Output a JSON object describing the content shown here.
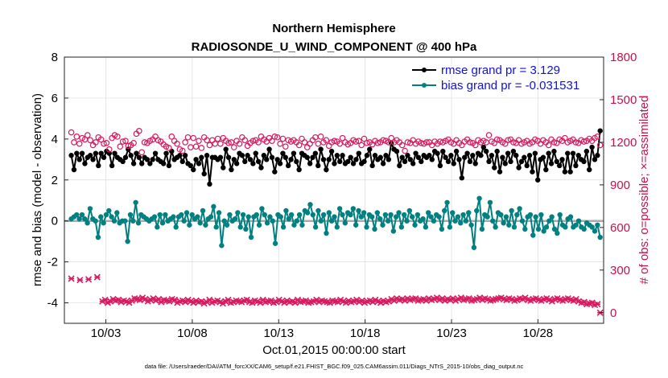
{
  "chart_data": {
    "type": "line",
    "title": "Northern Hemisphere",
    "subtitle": "RADIOSONDE_U_WIND_COMPONENT @ 400 hPa",
    "xlabel": "Oct.01,2015 00:00:00 start",
    "ylabel": "rmse and bias (model - observation)",
    "ylabel_right": "# of obs: o=possible; ×=assimilated",
    "footnote": "data file: /Users/raeder/DAI/ATM_forcXX/CAM6_setup/f.e21.FHIST_BGC.f09_025.CAM6assim.011/Diags_NTrS_2015-10/obs_diag_output.nc",
    "xlim": [
      0.6,
      31.8
    ],
    "ylim": [
      -5,
      8
    ],
    "ylim_right": [
      -75,
      1800
    ],
    "x_tick_values": [
      3,
      8,
      13,
      18,
      23,
      28
    ],
    "x_tick_labels": [
      "10/03",
      "10/08",
      "10/13",
      "10/18",
      "10/23",
      "10/28"
    ],
    "y_ticks": [
      -4,
      -2,
      0,
      2,
      4,
      6,
      8
    ],
    "y_ticks_right": [
      0,
      300,
      600,
      900,
      1200,
      1500,
      1800
    ],
    "legend": {
      "placement": "top-right",
      "rmse_label": "rmse grand pr = 3.129",
      "bias_label": "bias grand pr = -0.031531"
    },
    "colors": {
      "rmse": "#000000",
      "bias": "#008080",
      "obs": "#d81b60",
      "zero_line": "#aaaaaa",
      "grid": "#dcdcdc"
    },
    "series": [
      {
        "name": "rmse",
        "values": [
          3.2,
          2.5,
          3.3,
          3.0,
          3.3,
          2.8,
          3.1,
          3.2,
          3.0,
          3.3,
          2.7,
          3.3,
          3.1,
          3.4,
          3.3,
          2.7,
          3.3,
          3.1,
          3.0,
          2.9,
          3.1,
          3.5,
          3.2,
          2.8,
          3.3,
          3.1,
          2.8,
          3.1,
          3.0,
          2.8,
          3.0,
          3.3,
          3.0,
          2.9,
          2.8,
          3.3,
          2.7,
          3.4,
          3.0,
          3.1,
          3.2,
          2.9,
          3.2,
          2.8,
          2.7,
          2.5,
          3.0,
          2.8,
          3.1,
          2.3,
          3.2,
          1.8,
          3.1,
          3.1,
          3.0,
          3.1,
          2.6,
          3.5,
          3.1,
          2.5,
          3.0,
          2.8,
          3.3,
          3.2,
          2.9,
          3.2,
          3.0,
          2.8,
          3.3,
          2.9,
          2.6,
          3.2,
          3.0,
          3.5,
          3.1,
          2.4,
          3.0,
          2.8,
          3.3,
          3.1,
          2.7,
          3.0,
          3.3,
          2.9,
          2.5,
          3.3,
          3.2,
          3.1,
          2.8,
          3.1,
          3.3,
          2.7,
          3.5,
          3.0,
          2.5,
          3.0,
          3.4,
          2.8,
          3.2,
          2.9,
          3.2,
          2.8,
          2.9,
          3.1,
          2.8,
          3.0,
          3.3,
          2.8,
          2.9,
          3.2,
          3.5,
          2.7,
          3.2,
          3.0,
          3.1,
          2.8,
          3.2,
          3.0,
          3.8,
          3.5,
          3.4,
          2.7,
          3.1,
          2.9,
          3.2,
          3.0,
          2.8,
          3.3,
          3.1,
          2.9,
          3.2,
          3.1,
          3.2,
          3.0,
          3.4,
          3.3,
          2.7,
          3.4,
          3.1,
          2.9,
          3.2,
          2.8,
          3.4,
          3.0,
          2.1,
          3.1,
          3.3,
          2.9,
          3.2,
          2.8,
          3.3,
          3.2,
          3.6,
          3.4,
          2.9,
          3.2,
          2.6,
          3.4,
          2.4,
          3.1,
          2.8,
          3.3,
          2.9,
          3.4,
          3.2,
          2.6,
          2.9,
          3.1,
          2.7,
          3.2,
          2.4,
          3.3,
          2.0,
          3.0,
          3.1,
          2.5,
          3.3,
          2.8,
          3.4,
          2.9,
          2.7,
          3.0,
          2.4,
          3.3,
          2.4,
          3.3,
          2.7,
          3.2,
          3.0,
          2.9,
          3.4,
          2.5,
          3.6,
          3.0,
          3.2,
          4.4
        ]
      },
      {
        "name": "bias",
        "values": [
          0.1,
          0.2,
          0.3,
          0.1,
          0.3,
          0.1,
          -0.1,
          0.6,
          0.1,
          0.0,
          -0.8,
          0.2,
          -0.1,
          0.3,
          0.5,
          0.2,
          0.0,
          0.4,
          -0.1,
          0.0,
          0.0,
          -1.0,
          0.3,
          0.0,
          0.9,
          -0.1,
          0.3,
          0.2,
          0.1,
          0.0,
          0.1,
          0.2,
          -0.3,
          0.3,
          -0.1,
          0.3,
          0.0,
          0.1,
          0.2,
          -0.3,
          0.2,
          0.3,
          0.0,
          0.4,
          -0.2,
          0.3,
          0.1,
          0.2,
          -0.1,
          0.5,
          -0.2,
          0.1,
          0.2,
          0.7,
          -0.3,
          0.4,
          -1.2,
          0.0,
          -0.2,
          0.3,
          0.0,
          0.1,
          0.4,
          -0.3,
          0.3,
          -0.4,
          0.2,
          -0.8,
          0.2,
          0.3,
          -0.2,
          0.6,
          0.3,
          -0.1,
          0.2,
          0.0,
          -1.1,
          0.3,
          0.2,
          -0.3,
          0.5,
          0.1,
          0.3,
          -0.2,
          0.0,
          0.3,
          -0.2,
          0.5,
          0.4,
          0.8,
          0.3,
          -0.3,
          0.5,
          0.0,
          0.3,
          -0.6,
          0.4,
          0.0,
          0.2,
          -0.3,
          0.6,
          0.3,
          -0.1,
          0.4,
          0.3,
          0.6,
          -0.2,
          0.5,
          0.2,
          0.4,
          -0.3,
          0.3,
          0.2,
          -0.4,
          0.4,
          0.1,
          -0.2,
          0.3,
          0.0,
          0.3,
          -0.5,
          0.2,
          0.4,
          -0.3,
          0.3,
          0.0,
          0.5,
          0.2,
          -0.2,
          0.3,
          0.0,
          0.1,
          -0.3,
          0.4,
          0.2,
          0.0,
          0.3,
          0.2,
          -0.4,
          0.5,
          0.9,
          -0.3,
          0.4,
          0.0,
          0.2,
          -0.1,
          0.3,
          0.0,
          0.4,
          -0.2,
          -1.3,
          0.5,
          1.1,
          -0.4,
          0.3,
          0.2,
          0.9,
          0.0,
          -0.3,
          0.4,
          0.3,
          -0.1,
          0.2,
          -0.2,
          0.5,
          -0.3,
          0.3,
          0.6,
          0.0,
          -0.4,
          0.2,
          0.3,
          -0.7,
          0.2,
          -0.4,
          0.3,
          -0.5,
          -0.3,
          0.0,
          0.2,
          -0.4,
          -0.6,
          0.3,
          -0.2,
          -0.3,
          0.1,
          0.2,
          -0.3,
          -0.2,
          0.0,
          -0.3,
          -0.4,
          -0.1,
          -0.2,
          -0.3,
          -0.5,
          -0.2,
          -0.8
        ]
      }
    ],
    "obs_possible": [
      1270,
      1200,
      1240,
      1190,
      1230,
      1220,
      1250,
      1215,
      1180,
      1200,
      1235,
      1220,
      1190,
      1195,
      1150,
      1230,
      1250,
      1240,
      1170,
      1205,
      1210,
      1175,
      1180,
      1195,
      1260,
      1280,
      1130,
      1200,
      1195,
      1210,
      1220,
      1240,
      1215,
      1205,
      1185,
      1170,
      1160,
      1240,
      1210,
      1190,
      1150,
      1140,
      1200,
      1235,
      1165,
      1230,
      1170,
      1210,
      1160,
      1235,
      1215,
      1180,
      1215,
      1190,
      1225,
      1190,
      1230,
      1210,
      1195,
      1200,
      1165,
      1210,
      1190,
      1235,
      1215,
      1175,
      1195,
      1210,
      1215,
      1200,
      1240,
      1220,
      1205,
      1230,
      1210,
      1240,
      1235,
      1190,
      1225,
      1170,
      1215,
      1205,
      1215,
      1200,
      1180,
      1225,
      1200,
      1165,
      1190,
      1215,
      1235,
      1190,
      1240,
      1200,
      1215,
      1175,
      1200,
      1210,
      1205,
      1190,
      1230,
      1200,
      1185,
      1195,
      1215,
      1205,
      1210,
      1180,
      1225,
      1195,
      1200,
      1185,
      1210,
      1195,
      1200,
      1215,
      1210,
      1200,
      1230,
      1200,
      1215,
      1200,
      1180,
      1140,
      1200,
      1195,
      1215,
      1190,
      1205,
      1195,
      1190,
      1200,
      1200,
      1180,
      1205,
      1190,
      1205,
      1200,
      1210,
      1220,
      1200,
      1190,
      1215,
      1195,
      1180,
      1205,
      1220,
      1200,
      1195,
      1180,
      1215,
      1200,
      1210,
      1200,
      1250,
      1205,
      1195,
      1220,
      1215,
      1200,
      1190,
      1215,
      1220,
      1200,
      1195,
      1215,
      1190,
      1200,
      1210,
      1190,
      1200,
      1220,
      1210,
      1190,
      1215,
      1200,
      1180,
      1220,
      1200,
      1195,
      1220,
      1210,
      1230,
      1200,
      1210,
      1220,
      1200,
      1195,
      1215,
      1205,
      1210,
      1225,
      1210,
      1230,
      1240,
      1180
    ],
    "obs_assimilated_early": [
      240,
      230,
      235,
      250
    ],
    "obs_assimilated": [
      80,
      90,
      70,
      80,
      95,
      85,
      90,
      75,
      85,
      80,
      70,
      85,
      100,
      95,
      90,
      105,
      95,
      80,
      90,
      100,
      85,
      95,
      75,
      90,
      85,
      80,
      95,
      90,
      70,
      80,
      85,
      75,
      90,
      80,
      70,
      85,
      75,
      80,
      65,
      75,
      90,
      70,
      80,
      85,
      75,
      65,
      80,
      90,
      70,
      75,
      85,
      80,
      75,
      85,
      90,
      75,
      70,
      85,
      80,
      70,
      90,
      75,
      80,
      85,
      70,
      75,
      90,
      80,
      70,
      85,
      75,
      80,
      70,
      90,
      75,
      80,
      85,
      70,
      75,
      80,
      90,
      75,
      85,
      80,
      75,
      70,
      85,
      80,
      75,
      90,
      80,
      70,
      85,
      75,
      80,
      90,
      75,
      85,
      70,
      80,
      85,
      75,
      90,
      80,
      70,
      85,
      75,
      80,
      95,
      85,
      100,
      90,
      95,
      85,
      100,
      90,
      95,
      100,
      85,
      90,
      95,
      85,
      100,
      90,
      95,
      105,
      90,
      100,
      85,
      95,
      90,
      100,
      85,
      95,
      105,
      90,
      95,
      100,
      85,
      90,
      95,
      105,
      90,
      100,
      95,
      85,
      90,
      95,
      100,
      105,
      95,
      90,
      100,
      95,
      85,
      90,
      100,
      95,
      105,
      90,
      85,
      95,
      100,
      90,
      85,
      95,
      100,
      90,
      80,
      95,
      100,
      90,
      85,
      95,
      100,
      90,
      85,
      95,
      80,
      70,
      75,
      60,
      65,
      70,
      55,
      60,
      0
    ]
  }
}
